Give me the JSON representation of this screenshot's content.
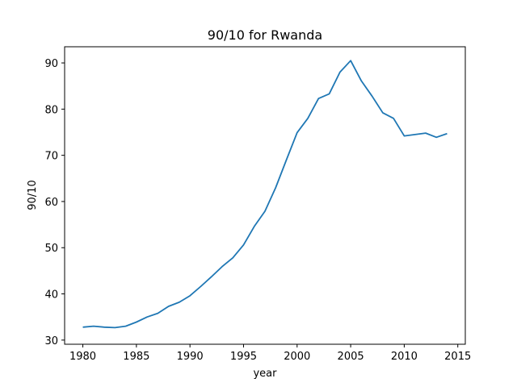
{
  "chart_data": {
    "type": "line",
    "title": "90/10 for Rwanda",
    "xlabel": "year",
    "ylabel": "90/10",
    "xlim": [
      1978.3,
      2015.7
    ],
    "ylim": [
      29.1,
      93.5
    ],
    "xticks": [
      1980,
      1985,
      1990,
      1995,
      2000,
      2005,
      2010,
      2015
    ],
    "yticks": [
      30,
      40,
      50,
      60,
      70,
      80,
      90
    ],
    "grid": false,
    "line_color": "#1f77b4",
    "series": [
      {
        "x": [
          1980,
          1981,
          1982,
          1983,
          1984,
          1985,
          1986,
          1987,
          1988,
          1989,
          1990,
          1991,
          1992,
          1993,
          1994,
          1995,
          1996,
          1997,
          1998,
          1999,
          2000,
          2001,
          2002,
          2003,
          2004,
          2005,
          2006,
          2007,
          2008,
          2009,
          2010,
          2011,
          2012,
          2013,
          2014
        ],
        "y": [
          32.8,
          33.0,
          32.8,
          32.7,
          33.0,
          33.9,
          35.0,
          35.8,
          37.3,
          38.2,
          39.6,
          41.6,
          43.7,
          45.9,
          47.8,
          50.6,
          54.6,
          57.9,
          63.0,
          69.0,
          74.9,
          78.0,
          82.3,
          83.3,
          88.0,
          90.5,
          86.1,
          82.8,
          79.2,
          78.0,
          74.2,
          74.5,
          74.8,
          73.9,
          74.7
        ]
      }
    ]
  }
}
